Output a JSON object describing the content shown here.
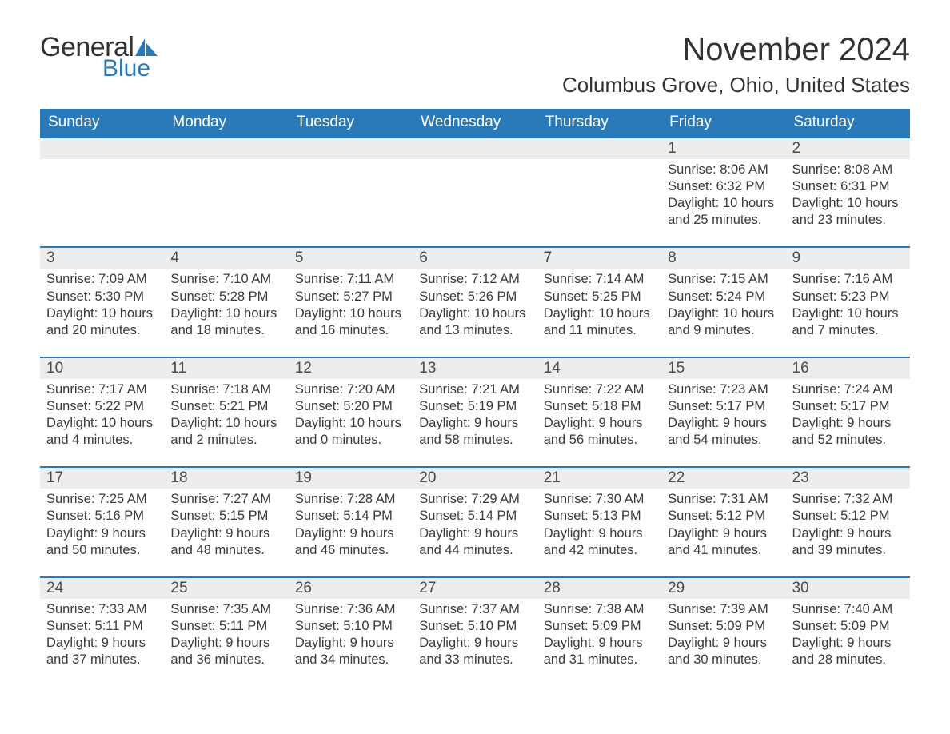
{
  "logo": {
    "word1": "General",
    "word2": "Blue"
  },
  "title": {
    "month": "November 2024",
    "location": "Columbus Grove, Ohio, United States"
  },
  "colors": {
    "header_bg": "#2a7ab9",
    "header_text": "#ffffff",
    "daynum_bg": "#ededed",
    "body_text": "#3a3a3a",
    "logo_blue": "#2a7ab9"
  },
  "weekdays": [
    "Sunday",
    "Monday",
    "Tuesday",
    "Wednesday",
    "Thursday",
    "Friday",
    "Saturday"
  ],
  "weeks": [
    [
      null,
      null,
      null,
      null,
      null,
      {
        "n": "1",
        "sunrise": "8:06 AM",
        "sunset": "6:32 PM",
        "daylight": "10 hours and 25 minutes."
      },
      {
        "n": "2",
        "sunrise": "8:08 AM",
        "sunset": "6:31 PM",
        "daylight": "10 hours and 23 minutes."
      }
    ],
    [
      {
        "n": "3",
        "sunrise": "7:09 AM",
        "sunset": "5:30 PM",
        "daylight": "10 hours and 20 minutes."
      },
      {
        "n": "4",
        "sunrise": "7:10 AM",
        "sunset": "5:28 PM",
        "daylight": "10 hours and 18 minutes."
      },
      {
        "n": "5",
        "sunrise": "7:11 AM",
        "sunset": "5:27 PM",
        "daylight": "10 hours and 16 minutes."
      },
      {
        "n": "6",
        "sunrise": "7:12 AM",
        "sunset": "5:26 PM",
        "daylight": "10 hours and 13 minutes."
      },
      {
        "n": "7",
        "sunrise": "7:14 AM",
        "sunset": "5:25 PM",
        "daylight": "10 hours and 11 minutes."
      },
      {
        "n": "8",
        "sunrise": "7:15 AM",
        "sunset": "5:24 PM",
        "daylight": "10 hours and 9 minutes."
      },
      {
        "n": "9",
        "sunrise": "7:16 AM",
        "sunset": "5:23 PM",
        "daylight": "10 hours and 7 minutes."
      }
    ],
    [
      {
        "n": "10",
        "sunrise": "7:17 AM",
        "sunset": "5:22 PM",
        "daylight": "10 hours and 4 minutes."
      },
      {
        "n": "11",
        "sunrise": "7:18 AM",
        "sunset": "5:21 PM",
        "daylight": "10 hours and 2 minutes."
      },
      {
        "n": "12",
        "sunrise": "7:20 AM",
        "sunset": "5:20 PM",
        "daylight": "10 hours and 0 minutes."
      },
      {
        "n": "13",
        "sunrise": "7:21 AM",
        "sunset": "5:19 PM",
        "daylight": "9 hours and 58 minutes."
      },
      {
        "n": "14",
        "sunrise": "7:22 AM",
        "sunset": "5:18 PM",
        "daylight": "9 hours and 56 minutes."
      },
      {
        "n": "15",
        "sunrise": "7:23 AM",
        "sunset": "5:17 PM",
        "daylight": "9 hours and 54 minutes."
      },
      {
        "n": "16",
        "sunrise": "7:24 AM",
        "sunset": "5:17 PM",
        "daylight": "9 hours and 52 minutes."
      }
    ],
    [
      {
        "n": "17",
        "sunrise": "7:25 AM",
        "sunset": "5:16 PM",
        "daylight": "9 hours and 50 minutes."
      },
      {
        "n": "18",
        "sunrise": "7:27 AM",
        "sunset": "5:15 PM",
        "daylight": "9 hours and 48 minutes."
      },
      {
        "n": "19",
        "sunrise": "7:28 AM",
        "sunset": "5:14 PM",
        "daylight": "9 hours and 46 minutes."
      },
      {
        "n": "20",
        "sunrise": "7:29 AM",
        "sunset": "5:14 PM",
        "daylight": "9 hours and 44 minutes."
      },
      {
        "n": "21",
        "sunrise": "7:30 AM",
        "sunset": "5:13 PM",
        "daylight": "9 hours and 42 minutes."
      },
      {
        "n": "22",
        "sunrise": "7:31 AM",
        "sunset": "5:12 PM",
        "daylight": "9 hours and 41 minutes."
      },
      {
        "n": "23",
        "sunrise": "7:32 AM",
        "sunset": "5:12 PM",
        "daylight": "9 hours and 39 minutes."
      }
    ],
    [
      {
        "n": "24",
        "sunrise": "7:33 AM",
        "sunset": "5:11 PM",
        "daylight": "9 hours and 37 minutes."
      },
      {
        "n": "25",
        "sunrise": "7:35 AM",
        "sunset": "5:11 PM",
        "daylight": "9 hours and 36 minutes."
      },
      {
        "n": "26",
        "sunrise": "7:36 AM",
        "sunset": "5:10 PM",
        "daylight": "9 hours and 34 minutes."
      },
      {
        "n": "27",
        "sunrise": "7:37 AM",
        "sunset": "5:10 PM",
        "daylight": "9 hours and 33 minutes."
      },
      {
        "n": "28",
        "sunrise": "7:38 AM",
        "sunset": "5:09 PM",
        "daylight": "9 hours and 31 minutes."
      },
      {
        "n": "29",
        "sunrise": "7:39 AM",
        "sunset": "5:09 PM",
        "daylight": "9 hours and 30 minutes."
      },
      {
        "n": "30",
        "sunrise": "7:40 AM",
        "sunset": "5:09 PM",
        "daylight": "9 hours and 28 minutes."
      }
    ]
  ],
  "labels": {
    "sunrise": "Sunrise: ",
    "sunset": "Sunset: ",
    "daylight": "Daylight: "
  }
}
